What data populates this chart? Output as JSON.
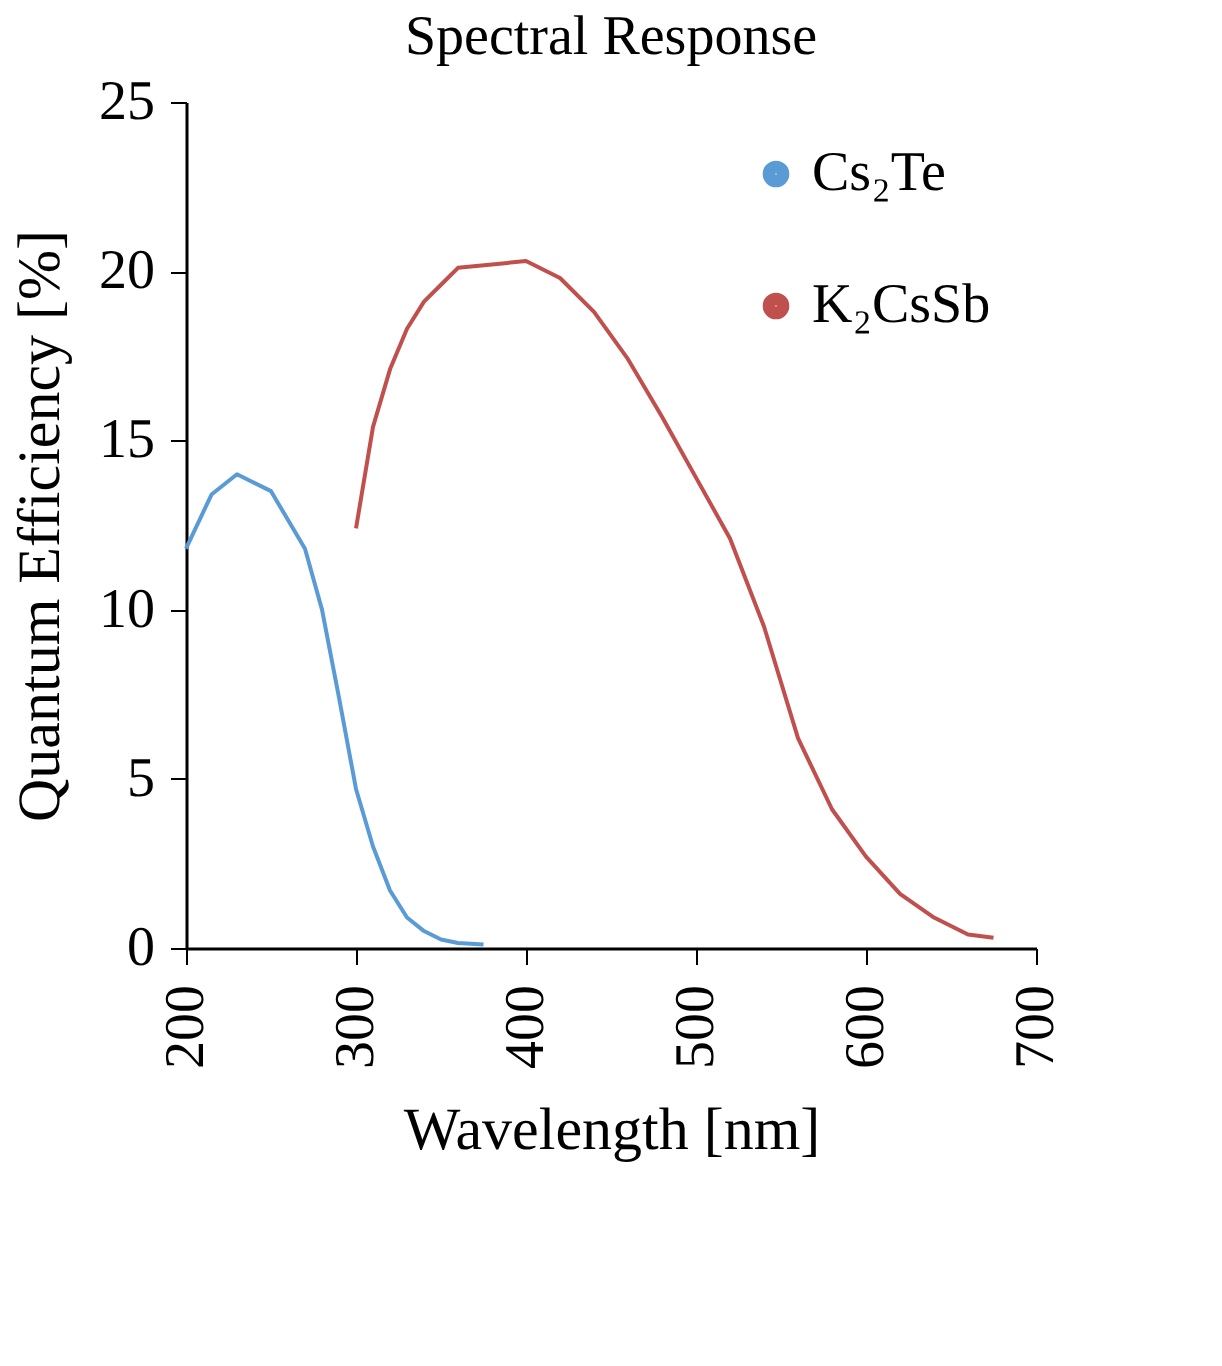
{
  "chart_data": {
    "type": "line",
    "title": "Spectral Response",
    "xlabel": "Wavelength [nm]",
    "ylabel": "Quantum Efficiency [%]",
    "xlim": [
      200,
      700
    ],
    "xticks": [
      200,
      300,
      400,
      500,
      600,
      700
    ],
    "ylim": [
      0,
      25
    ],
    "yticks": [
      0,
      5,
      10,
      15,
      20,
      25
    ],
    "grid": false,
    "legend": "top right",
    "marker": "none",
    "line_style": "solid",
    "series": [
      {
        "name": "Cs₂Te",
        "color": "#5b9bd5",
        "x": [
          200,
          215,
          230,
          250,
          270,
          280,
          290,
          300,
          310,
          320,
          330,
          340,
          350,
          360,
          375
        ],
        "values": [
          11.8,
          13.4,
          14.0,
          13.5,
          11.8,
          10.0,
          7.4,
          4.7,
          3.0,
          1.7,
          0.9,
          0.5,
          0.25,
          0.15,
          0.1
        ]
      },
      {
        "name": "K₂CsSb",
        "color": "#c0504d",
        "x": [
          300,
          310,
          320,
          330,
          340,
          350,
          360,
          380,
          400,
          420,
          440,
          460,
          480,
          500,
          520,
          540,
          560,
          580,
          600,
          620,
          640,
          660,
          675
        ],
        "values": [
          12.4,
          15.4,
          17.1,
          18.3,
          19.1,
          19.6,
          20.1,
          20.2,
          20.3,
          19.8,
          18.8,
          17.4,
          15.7,
          13.9,
          12.1,
          9.5,
          6.2,
          4.1,
          2.7,
          1.6,
          0.9,
          0.4,
          0.3
        ]
      }
    ]
  }
}
